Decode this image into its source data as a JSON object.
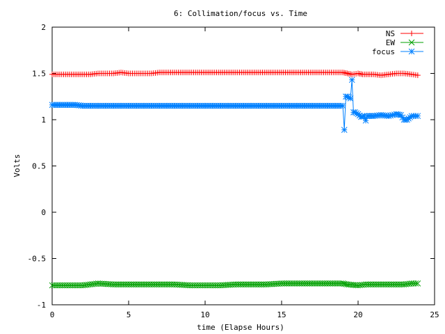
{
  "chart_data": {
    "type": "line",
    "title": "6: Collimation/focus vs. Time",
    "xlabel": "time (Elapse Hours)",
    "ylabel": "Volts",
    "xlim": [
      0,
      25
    ],
    "ylim": [
      -1,
      2
    ],
    "x_ticks": [
      "0",
      "5",
      "10",
      "15",
      "20",
      "25"
    ],
    "y_ticks": [
      "-1",
      "-0.5",
      "0",
      "0.5",
      "1",
      "1.5",
      "2"
    ],
    "grid": false,
    "legend_position": "top-right",
    "series": [
      {
        "name": "NS",
        "color": "#ff0000",
        "marker": "plus",
        "x": [
          0,
          1,
          2,
          2.5,
          3,
          4,
          4.5,
          5,
          6,
          6.5,
          7,
          8,
          9,
          10,
          11,
          12,
          13,
          14,
          15,
          16,
          17,
          18,
          19,
          19.3,
          19.6,
          20,
          20.3,
          21,
          21.5,
          22,
          22.5,
          23,
          23.5,
          23.9
        ],
        "y": [
          1.49,
          1.49,
          1.49,
          1.49,
          1.5,
          1.5,
          1.51,
          1.5,
          1.5,
          1.5,
          1.51,
          1.51,
          1.51,
          1.51,
          1.51,
          1.51,
          1.51,
          1.51,
          1.51,
          1.51,
          1.51,
          1.51,
          1.51,
          1.5,
          1.49,
          1.5,
          1.49,
          1.49,
          1.48,
          1.49,
          1.5,
          1.5,
          1.49,
          1.48
        ]
      },
      {
        "name": "EW",
        "color": "#00a000",
        "marker": "cross",
        "x": [
          0,
          1,
          2,
          2.5,
          3,
          4,
          5,
          6,
          7,
          8,
          9,
          10,
          11,
          12,
          13,
          14,
          15,
          16,
          17,
          18,
          19,
          19.3,
          20,
          20.5,
          21,
          22,
          22.5,
          23,
          23.5,
          23.9
        ],
        "y": [
          -0.79,
          -0.79,
          -0.79,
          -0.78,
          -0.77,
          -0.78,
          -0.78,
          -0.78,
          -0.78,
          -0.78,
          -0.79,
          -0.79,
          -0.79,
          -0.78,
          -0.78,
          -0.78,
          -0.77,
          -0.77,
          -0.77,
          -0.77,
          -0.77,
          -0.78,
          -0.79,
          -0.78,
          -0.78,
          -0.78,
          -0.78,
          -0.78,
          -0.77,
          -0.77
        ]
      },
      {
        "name": "focus",
        "color": "#0080ff",
        "marker": "star",
        "x": [
          0,
          0.5,
          1,
          1.5,
          2,
          3,
          4,
          5,
          6,
          7,
          8,
          9,
          10,
          11,
          12,
          13,
          14,
          15,
          16,
          17,
          18,
          19,
          19.1,
          19.2,
          19.3,
          19.4,
          19.5,
          19.6,
          19.7,
          19.8,
          19.9,
          20,
          20.2,
          20.4,
          20.5,
          20.6,
          20.8,
          21,
          21.5,
          22,
          22.5,
          22.8,
          23,
          23.2,
          23.5,
          23.9
        ],
        "y": [
          1.16,
          1.16,
          1.16,
          1.16,
          1.15,
          1.15,
          1.15,
          1.15,
          1.15,
          1.15,
          1.15,
          1.15,
          1.15,
          1.15,
          1.15,
          1.15,
          1.15,
          1.15,
          1.15,
          1.15,
          1.15,
          1.15,
          0.89,
          1.25,
          1.25,
          1.24,
          1.23,
          1.43,
          1.08,
          1.08,
          1.07,
          1.06,
          1.03,
          1.04,
          0.99,
          1.04,
          1.04,
          1.04,
          1.05,
          1.04,
          1.06,
          1.05,
          1.0,
          1.0,
          1.04,
          1.04
        ]
      }
    ]
  }
}
